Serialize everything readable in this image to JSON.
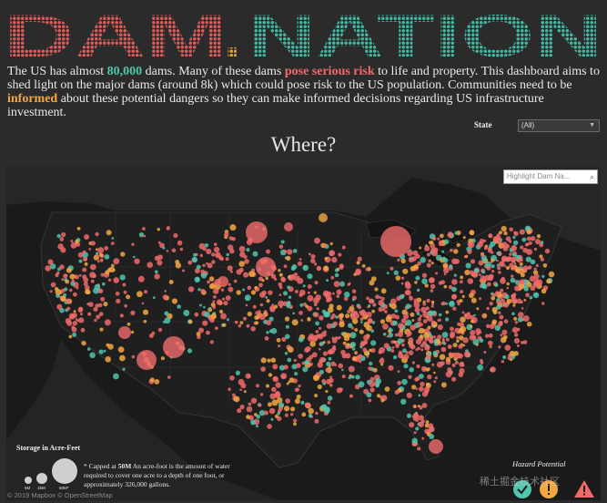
{
  "header": {
    "title_left": "DAM",
    "title_dot": ".",
    "title_right": "NATION"
  },
  "intro": {
    "p1": "The US has almost ",
    "hl1": "80,000",
    "p2": " dams. Many of these dams ",
    "hl2": "pose serious risk",
    "p3": " to life and property. This dashboard aims to shed light on the major dams (around 8k) which could pose risk to the US population.  Communities need to be ",
    "hl3": "informed",
    "p4": " about these potential dangers so they can make informed decisions regarding US infrastructure investment."
  },
  "filter": {
    "state_label": "State",
    "state_value": "(All)"
  },
  "section": {
    "where_title": "Where?"
  },
  "map": {
    "search_placeholder": "Highlight Dam Na...",
    "storage_legend_title": "Storage in Acre-Feet",
    "size_labels": [
      "5M",
      "15M",
      "50M*"
    ],
    "cap_note_bold": "50M",
    "cap_note_pre": "* Capped at ",
    "cap_note_post": " An acre-foot is the amount of water required to cover one acre to a depth of one foot, or approximately 326,000 gallons.",
    "hazard_title": "Hazard Potential",
    "hazard_levels": [
      "low",
      "significant",
      "high"
    ],
    "credit": "© 2019 Mapbox © OpenStreetMap",
    "watermark": "稀土掘金技术社区"
  },
  "colors": {
    "background": "#2b2b2b",
    "map_bg": "#1a1a1a",
    "high_hazard": "#f06a6a",
    "significant_hazard": "#f3a742",
    "low_hazard": "#4fc6ad",
    "title_red": "#e05a5a",
    "title_teal": "#3fb9a2"
  }
}
